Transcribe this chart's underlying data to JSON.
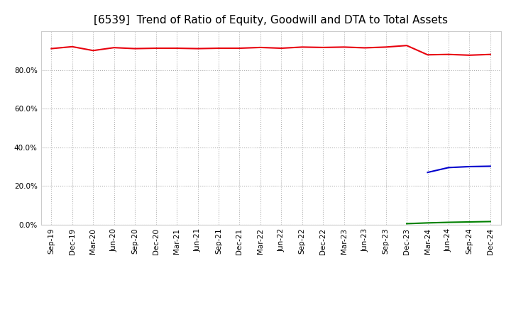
{
  "title": "[6539]  Trend of Ratio of Equity, Goodwill and DTA to Total Assets",
  "x_labels": [
    "Sep-19",
    "Dec-19",
    "Mar-20",
    "Jun-20",
    "Sep-20",
    "Dec-20",
    "Mar-21",
    "Jun-21",
    "Sep-21",
    "Dec-21",
    "Mar-22",
    "Jun-22",
    "Sep-22",
    "Dec-22",
    "Mar-23",
    "Jun-23",
    "Sep-23",
    "Dec-23",
    "Mar-24",
    "Jun-24",
    "Sep-24",
    "Dec-24"
  ],
  "equity": [
    0.91,
    0.92,
    0.9,
    0.915,
    0.91,
    0.912,
    0.912,
    0.91,
    0.912,
    0.912,
    0.916,
    0.912,
    0.918,
    0.916,
    0.918,
    0.914,
    0.918,
    0.926,
    0.878,
    0.88,
    0.876,
    0.88
  ],
  "goodwill": [
    null,
    null,
    null,
    null,
    null,
    null,
    null,
    null,
    null,
    null,
    null,
    null,
    null,
    null,
    null,
    null,
    null,
    null,
    0.27,
    0.295,
    0.3,
    0.302
  ],
  "dta": [
    null,
    null,
    null,
    null,
    null,
    null,
    null,
    null,
    null,
    null,
    null,
    null,
    null,
    null,
    null,
    null,
    null,
    0.005,
    0.009,
    0.012,
    0.014,
    0.016
  ],
  "equity_color": "#e8000d",
  "goodwill_color": "#0000cd",
  "dta_color": "#008000",
  "background_color": "#ffffff",
  "grid_color": "#b0b0b0",
  "ylim": [
    0.0,
    1.0
  ],
  "yticks": [
    0.0,
    0.2,
    0.4,
    0.6,
    0.8
  ],
  "title_fontsize": 11,
  "tick_fontsize": 7.5,
  "legend_fontsize": 9
}
